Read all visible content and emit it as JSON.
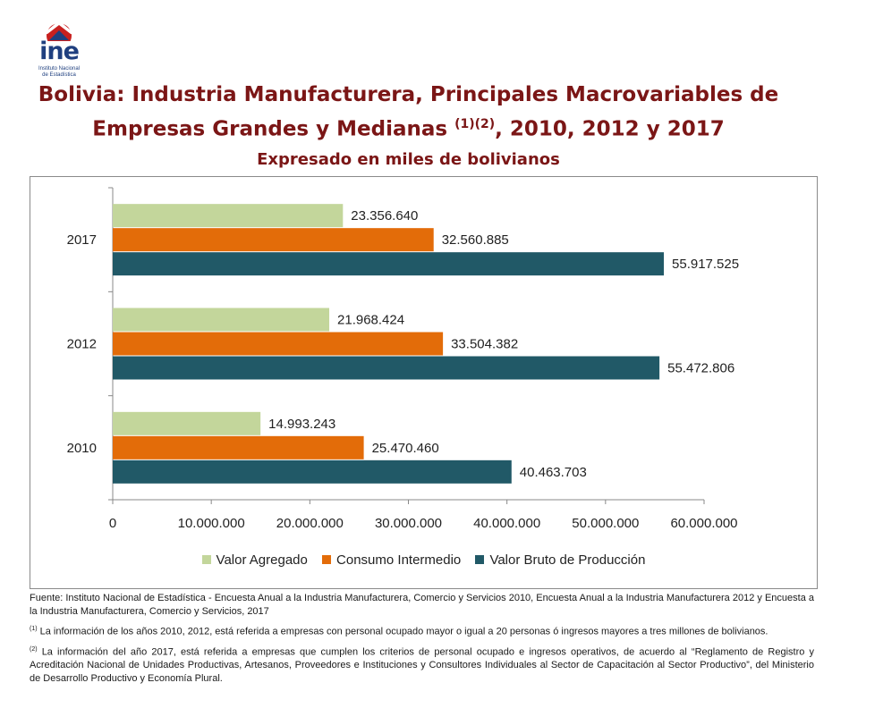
{
  "logo": {
    "text": "ine",
    "subtitle_line1": "Instituto Nacional",
    "subtitle_line2": "de Estadística"
  },
  "header": {
    "title_line1": "Bolivia: Industria Manufacturera, Principales Macrovariables de",
    "title_line2_pre": "Empresas Grandes y Medianas",
    "title_line2_sup": "(1)(2)",
    "title_line2_post": ",  2010, 2012 y 2017",
    "subtitle": "Expresado en miles de bolivianos"
  },
  "colors": {
    "valor_agregado": "#c3d69b",
    "consumo_intermedio": "#e36c09",
    "valor_bruto": "#215967",
    "title": "#7b1616"
  },
  "chart_data": {
    "type": "bar",
    "orientation": "horizontal",
    "categories": [
      "2017",
      "2012",
      "2010"
    ],
    "series": [
      {
        "name": "Valor Agregado",
        "values": [
          23356640,
          21968424,
          14993243
        ],
        "labels": [
          "23.356.640",
          "21.968.424",
          "14.993.243"
        ]
      },
      {
        "name": "Consumo Intermedio",
        "values": [
          32560885,
          33504382,
          25470460
        ],
        "labels": [
          "32.560.885",
          "33.504.382",
          "25.470.460"
        ]
      },
      {
        "name": "Valor Bruto de Producción",
        "values": [
          55917525,
          55472806,
          40463703
        ],
        "labels": [
          "55.917.525",
          "55.472.806",
          "40.463.703"
        ]
      }
    ],
    "xlim": [
      0,
      60000000
    ],
    "xticks": [
      0,
      10000000,
      20000000,
      30000000,
      40000000,
      50000000,
      60000000
    ],
    "xtick_labels": [
      "0",
      "10.000.000",
      "20.000.000",
      "30.000.000",
      "40.000.000",
      "50.000.000",
      "60.000.000"
    ],
    "grid": false,
    "legend_position": "bottom"
  },
  "notes": {
    "source": "Fuente: Instituto Nacional de Estadística - Encuesta Anual a la Industria Manufacturera, Comercio y Servicios 2010, Encuesta Anual a la Industria Manufacturera 2012 y Encuesta a la Industria Manufacturera, Comercio y Servicios, 2017",
    "note1_mark": "(1)",
    "note1": " La información de los años 2010, 2012, está referida a empresas con personal ocupado mayor o igual a 20 personas ó ingresos mayores a tres millones de bolivianos.",
    "note2_mark": "(2)",
    "note2": " La información del año 2017, está referida a empresas que cumplen los criterios de personal ocupado e ingresos operativos, de acuerdo al “Reglamento de Registro y Acreditación Nacional de Unidades Productivas, Artesanos, Proveedores e Instituciones y Consultores Individuales al Sector de Capacitación al Sector Productivo”, del Ministerio de Desarrollo Productivo y Economía Plural."
  }
}
